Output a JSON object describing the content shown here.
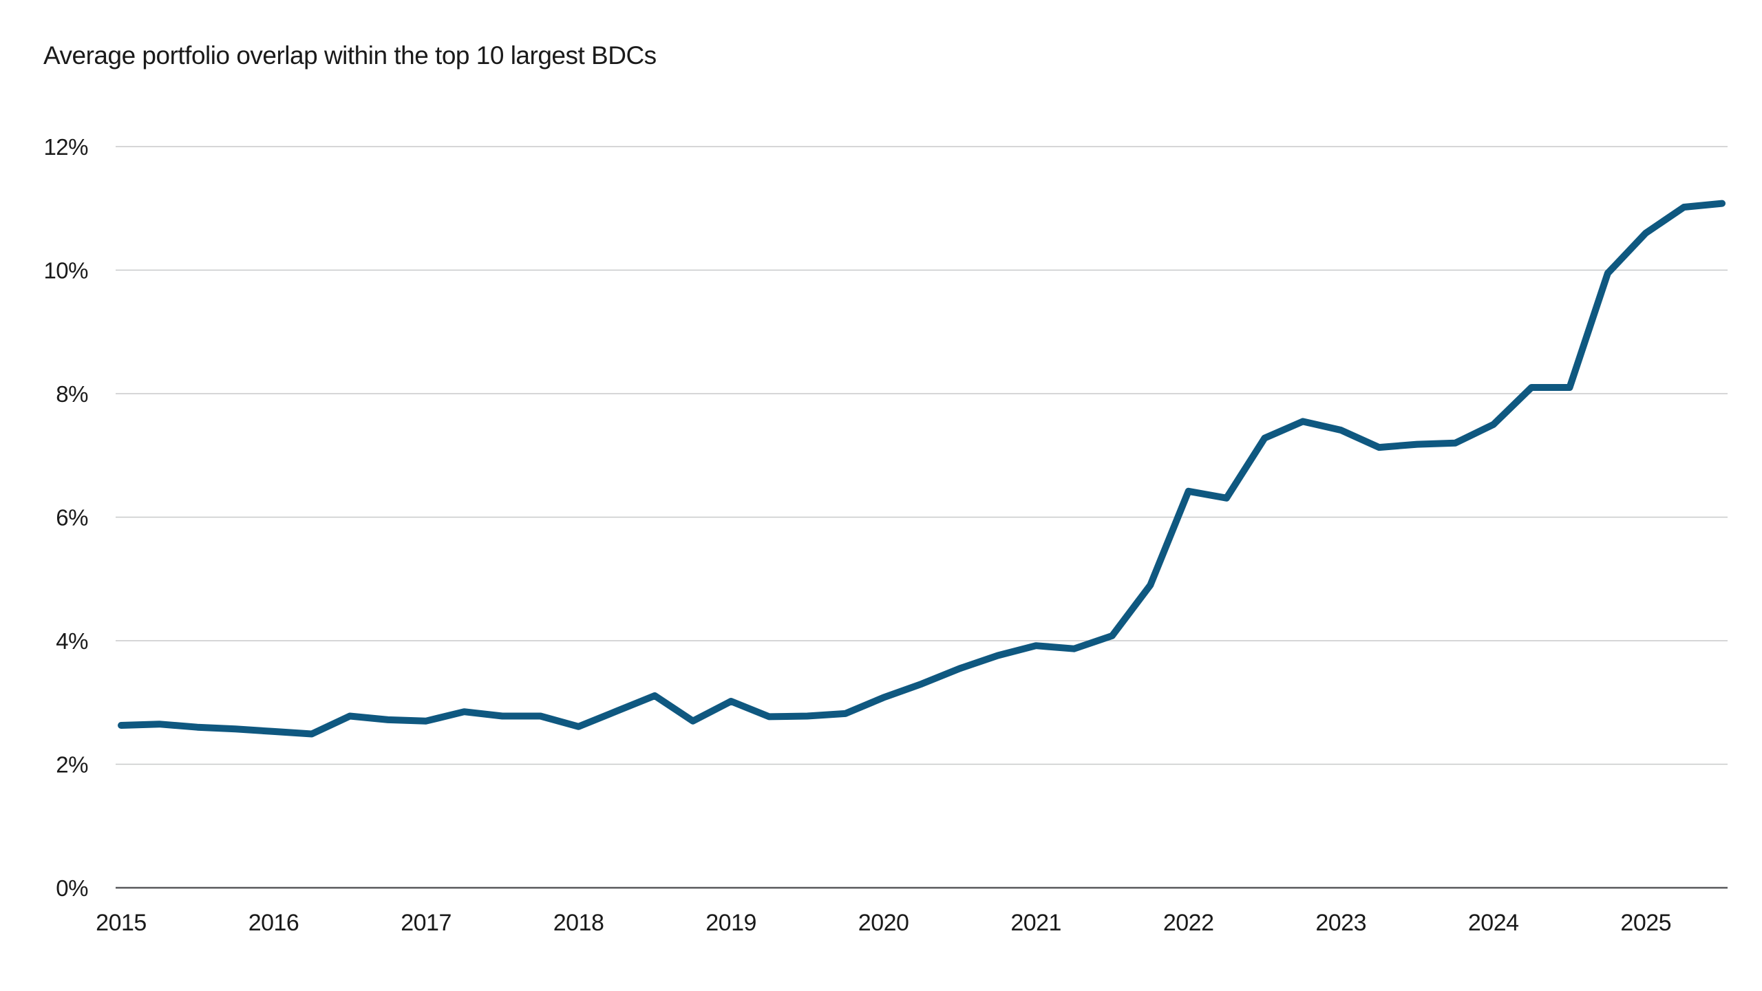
{
  "title": "Average portfolio overlap within the top 10 largest BDCs",
  "colors": {
    "line": "#0f5880",
    "gridline": "#c8c9ca",
    "axis_line": "#58595b",
    "text": "#1a1a1a",
    "background": "#ffffff"
  },
  "chart_data": {
    "type": "line",
    "title": "Average portfolio overlap within the top 10 largest BDCs",
    "xlabel": "",
    "ylabel": "",
    "ylim": [
      0,
      12
    ],
    "y_tick_labels": [
      "0%",
      "2%",
      "4%",
      "6%",
      "8%",
      "10%",
      "12%"
    ],
    "x_tick_labels": [
      "2015",
      "2016",
      "2017",
      "2018",
      "2019",
      "2020",
      "2021",
      "2022",
      "2023",
      "2024",
      "2025"
    ],
    "frequency": "quarterly",
    "start_period": "2015 Q1",
    "end_period": "2025 Q3",
    "legend": "none",
    "grid": "horizontal",
    "series": [
      {
        "name": "Average portfolio overlap",
        "values": [
          2.63,
          2.65,
          2.6,
          2.57,
          2.53,
          2.49,
          2.78,
          2.72,
          2.7,
          2.85,
          2.78,
          2.78,
          2.61,
          2.86,
          3.11,
          2.7,
          3.02,
          2.77,
          2.78,
          2.82,
          3.08,
          3.3,
          3.55,
          3.76,
          3.92,
          3.87,
          4.08,
          4.9,
          6.42,
          6.31,
          7.28,
          7.55,
          7.41,
          7.13,
          7.18,
          7.2,
          7.5,
          8.1,
          8.1,
          9.95,
          10.6,
          11.02,
          11.08
        ]
      }
    ]
  }
}
